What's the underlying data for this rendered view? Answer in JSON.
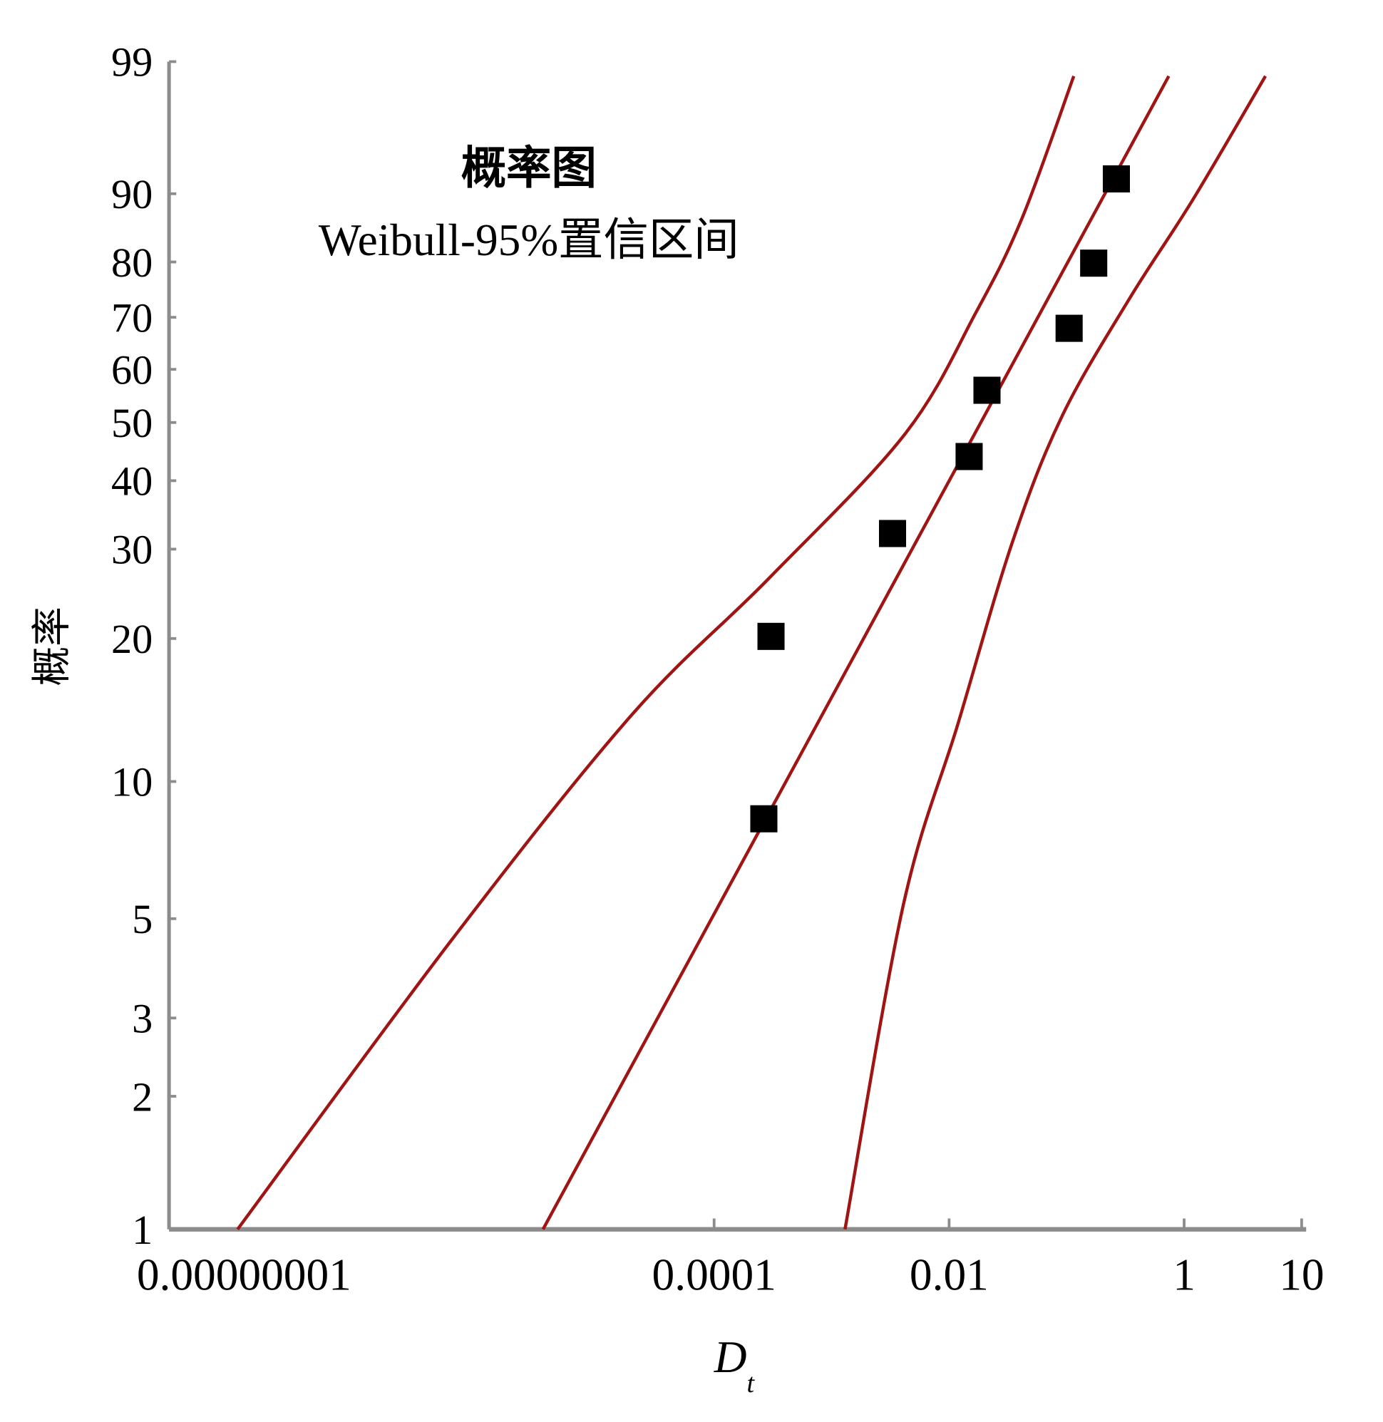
{
  "chart_data": {
    "type": "scatter",
    "title": "概率图",
    "subtitle": "Weibull-95%置信区间",
    "xlabel": "D",
    "xlabel_subscript": "t",
    "ylabel": "概率",
    "x_scale": "log",
    "y_scale": "weibull-probability",
    "xlim": [
      2.5e-09,
      10
    ],
    "ylim": [
      1,
      99
    ],
    "x_ticks": [
      {
        "value": 1e-08,
        "label": "0.00000001"
      },
      {
        "value": 0.0001,
        "label": "0.0001"
      },
      {
        "value": 0.01,
        "label": "0.01"
      },
      {
        "value": 1,
        "label": "1"
      },
      {
        "value": 10,
        "label": "10"
      }
    ],
    "y_ticks": [
      {
        "value": 1,
        "label": "1"
      },
      {
        "value": 2,
        "label": "2"
      },
      {
        "value": 3,
        "label": "3"
      },
      {
        "value": 5,
        "label": "5"
      },
      {
        "value": 10,
        "label": "10"
      },
      {
        "value": 20,
        "label": "20"
      },
      {
        "value": 30,
        "label": "30"
      },
      {
        "value": 40,
        "label": "40"
      },
      {
        "value": 50,
        "label": "50"
      },
      {
        "value": 60,
        "label": "60"
      },
      {
        "value": 70,
        "label": "70"
      },
      {
        "value": 80,
        "label": "80"
      },
      {
        "value": 90,
        "label": "90"
      },
      {
        "value": 99,
        "label": "99"
      }
    ],
    "grid": false,
    "points": [
      {
        "x": 0.000265,
        "y": 8.3
      },
      {
        "x": 0.000305,
        "y": 20.2
      },
      {
        "x": 0.0033,
        "y": 32.1
      },
      {
        "x": 0.0148,
        "y": 44.0
      },
      {
        "x": 0.021,
        "y": 56.0
      },
      {
        "x": 0.105,
        "y": 67.9
      },
      {
        "x": 0.17,
        "y": 79.8
      },
      {
        "x": 0.265,
        "y": 91.7
      }
    ],
    "fit_line": [
      {
        "x": 3.5e-06,
        "y": 1
      },
      {
        "x": 0.74,
        "y": 98.6
      }
    ],
    "lower_bound": [
      {
        "x": 8.8e-09,
        "y": 1
      },
      {
        "x": 5.9e-07,
        "y": 4.5
      },
      {
        "x": 2e-05,
        "y": 13.9
      },
      {
        "x": 0.00029,
        "y": 26.3
      },
      {
        "x": 0.0042,
        "y": 47.9
      },
      {
        "x": 0.017,
        "y": 71.0
      },
      {
        "x": 0.042,
        "y": 86.9
      },
      {
        "x": 0.115,
        "y": 98.6
      }
    ],
    "upper_bound": [
      {
        "x": 0.0013,
        "y": 1
      },
      {
        "x": 0.0041,
        "y": 5.4
      },
      {
        "x": 0.0119,
        "y": 13.3
      },
      {
        "x": 0.0345,
        "y": 30.9
      },
      {
        "x": 0.0916,
        "y": 51.2
      },
      {
        "x": 0.345,
        "y": 73.6
      },
      {
        "x": 1.19,
        "y": 89.3
      },
      {
        "x": 4.92,
        "y": 98.6
      }
    ],
    "colors": {
      "curves": "#a01414",
      "markers": "#000000",
      "axis": "#8c8c8c"
    }
  }
}
